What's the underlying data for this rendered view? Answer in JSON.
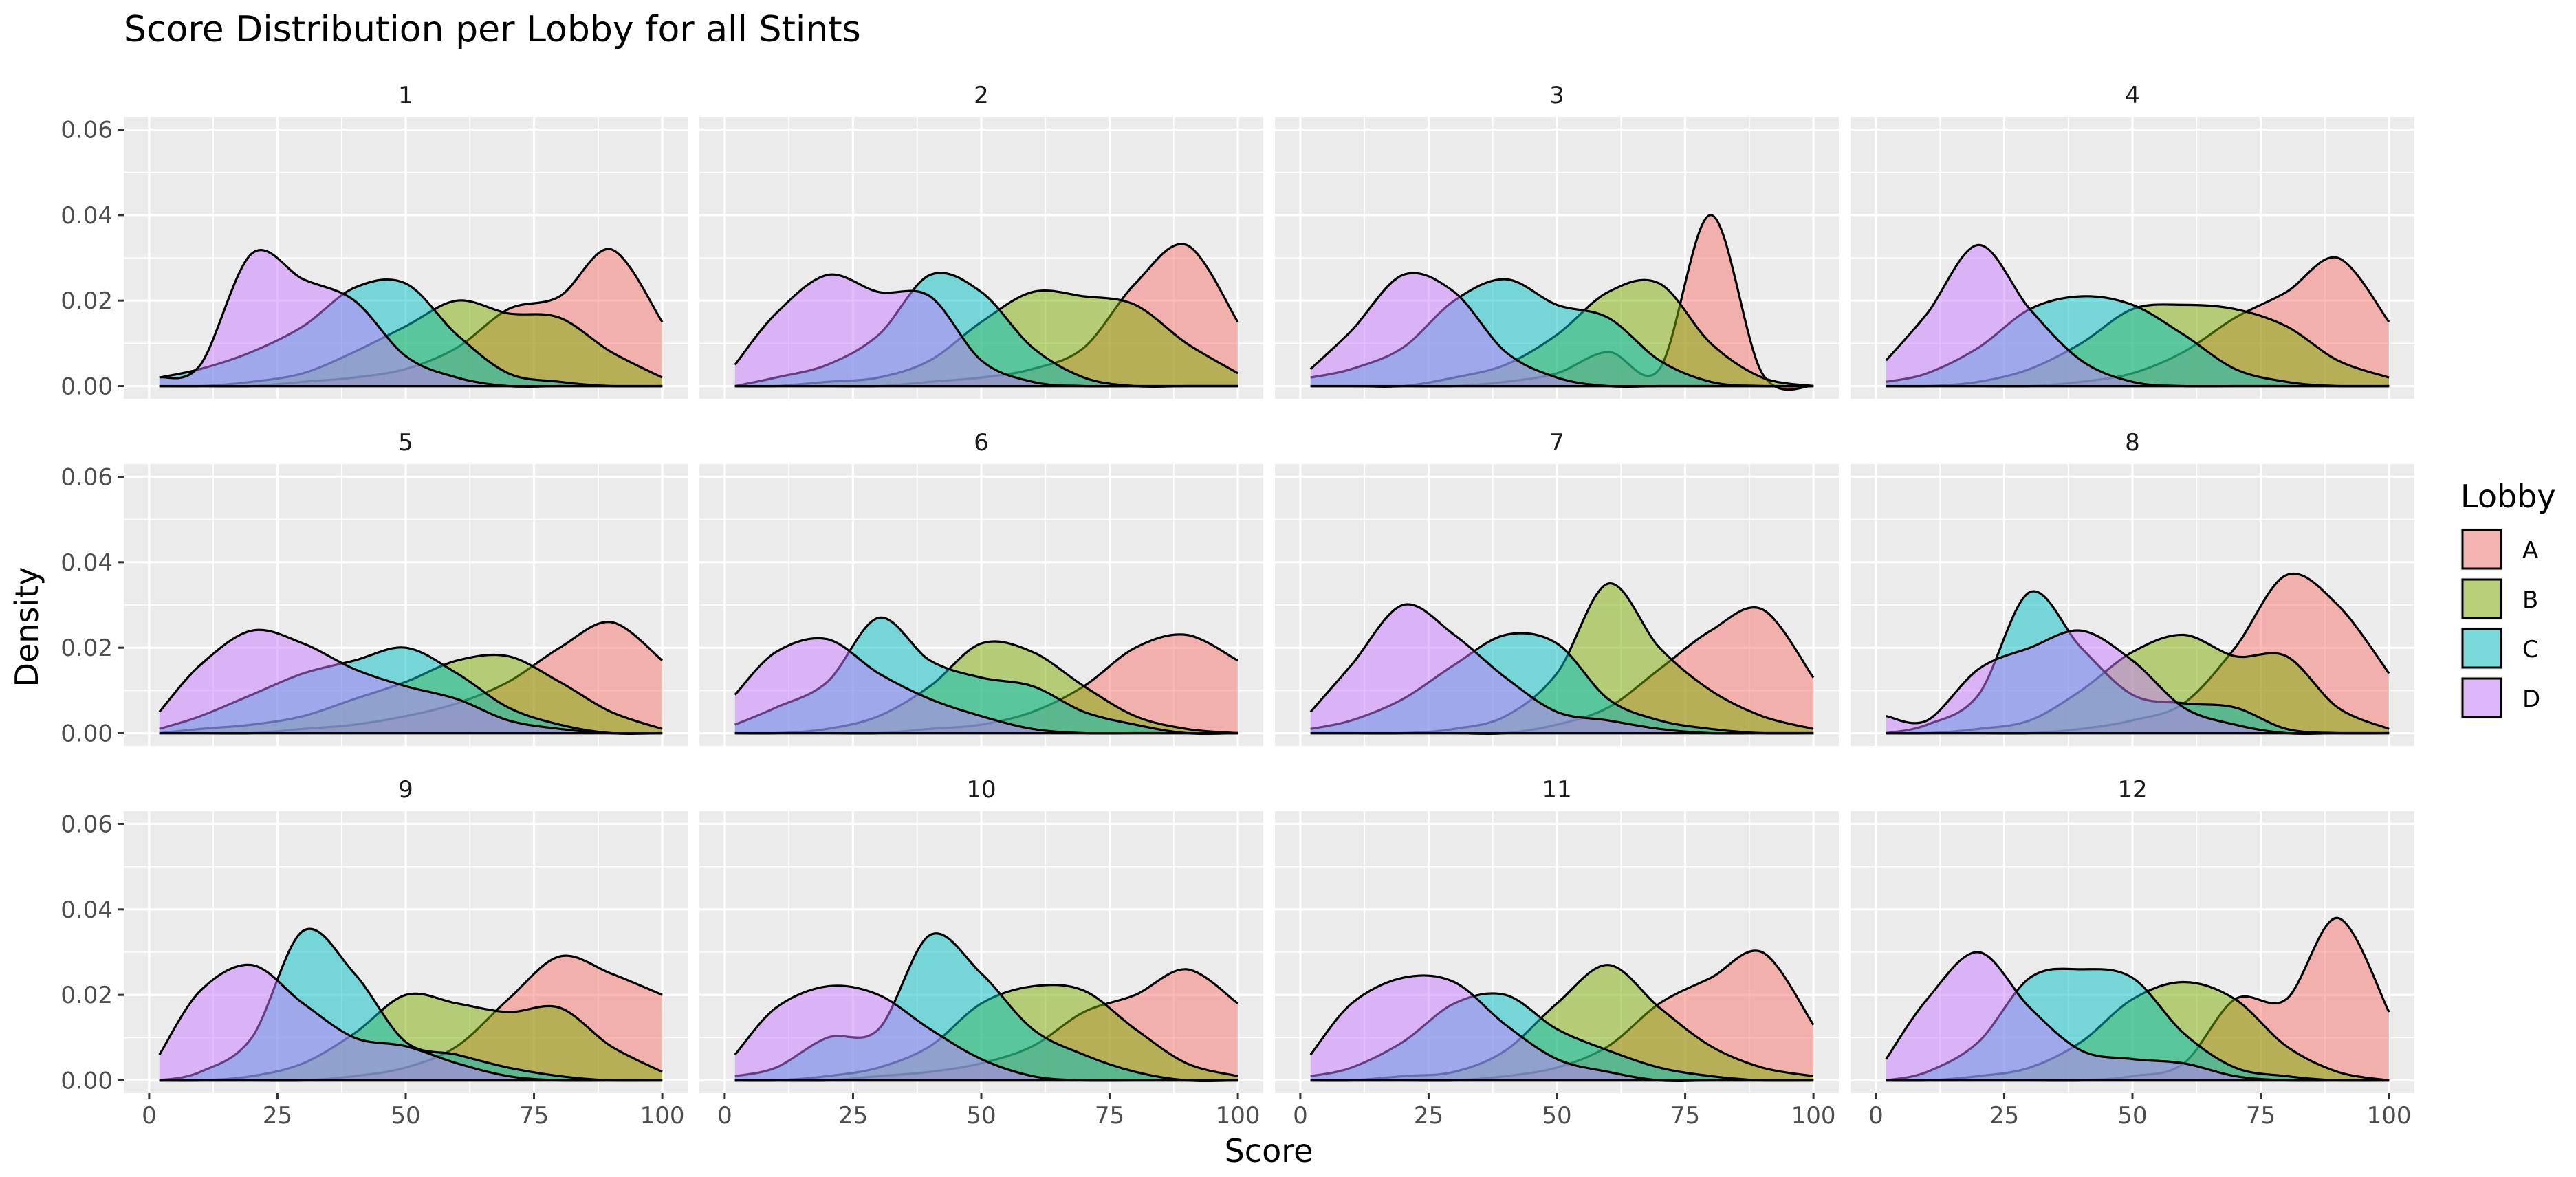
{
  "chart_data": {
    "type": "area",
    "subtype": "density (faceted, 3x4 grid)",
    "title": "Score Distribution per Lobby for all Stints",
    "xlabel": "Score",
    "ylabel": "Density",
    "xlim": [
      0,
      100
    ],
    "ylim": [
      0,
      0.06
    ],
    "x_ticks": [
      0,
      25,
      50,
      75,
      100
    ],
    "x_tick_labels": [
      "0",
      "25",
      "50",
      "75",
      "100"
    ],
    "y_ticks": [
      0,
      0.02,
      0.04,
      0.06
    ],
    "y_tick_labels": [
      "0.00",
      "0.02",
      "0.04",
      "0.06"
    ],
    "grid": true,
    "legend": {
      "title": "Lobby",
      "position": "right",
      "entries": [
        {
          "name": "A",
          "color": "#F8766D"
        },
        {
          "name": "B",
          "color": "#7CAE00"
        },
        {
          "name": "C",
          "color": "#00BFC4"
        },
        {
          "name": "D",
          "color": "#C77CFF"
        }
      ]
    },
    "x_eval": [
      2,
      10,
      20,
      30,
      40,
      50,
      60,
      70,
      80,
      90,
      100
    ],
    "facets": [
      {
        "label": "1",
        "series": [
          {
            "name": "A",
            "values": [
              0.0,
              0.0,
              0.0,
              0.001,
              0.002,
              0.004,
              0.009,
              0.018,
              0.021,
              0.032,
              0.015
            ]
          },
          {
            "name": "B",
            "values": [
              0.0,
              0.0,
              0.001,
              0.003,
              0.008,
              0.014,
              0.02,
              0.017,
              0.016,
              0.008,
              0.002
            ]
          },
          {
            "name": "C",
            "values": [
              0.002,
              0.004,
              0.008,
              0.014,
              0.023,
              0.024,
              0.012,
              0.003,
              0.001,
              0.0,
              0.0
            ]
          },
          {
            "name": "D",
            "values": [
              0.002,
              0.005,
              0.031,
              0.025,
              0.02,
              0.007,
              0.002,
              0.0,
              0.0,
              0.0,
              0.0
            ]
          }
        ]
      },
      {
        "label": "2",
        "series": [
          {
            "name": "A",
            "values": [
              0.0,
              0.0,
              0.0,
              0.0,
              0.001,
              0.002,
              0.004,
              0.009,
              0.024,
              0.033,
              0.015
            ]
          },
          {
            "name": "B",
            "values": [
              0.0,
              0.0,
              0.001,
              0.002,
              0.006,
              0.015,
              0.022,
              0.021,
              0.019,
              0.01,
              0.003
            ]
          },
          {
            "name": "C",
            "values": [
              0.0,
              0.002,
              0.005,
              0.012,
              0.026,
              0.022,
              0.009,
              0.002,
              0.0,
              0.0,
              0.0
            ]
          },
          {
            "name": "D",
            "values": [
              0.005,
              0.017,
              0.026,
              0.022,
              0.021,
              0.006,
              0.001,
              0.0,
              0.0,
              0.0,
              0.0
            ]
          }
        ]
      },
      {
        "label": "3",
        "series": [
          {
            "name": "A",
            "values": [
              0.0,
              0.0,
              0.0,
              0.0,
              0.001,
              0.003,
              0.008,
              0.004,
              0.04,
              0.003,
              0.0
            ]
          },
          {
            "name": "B",
            "values": [
              0.0,
              0.0,
              0.0,
              0.002,
              0.005,
              0.012,
              0.022,
              0.024,
              0.01,
              0.002,
              0.0
            ]
          },
          {
            "name": "C",
            "values": [
              0.002,
              0.004,
              0.009,
              0.02,
              0.025,
              0.019,
              0.016,
              0.006,
              0.001,
              0.0,
              0.0
            ]
          },
          {
            "name": "D",
            "values": [
              0.004,
              0.013,
              0.026,
              0.022,
              0.008,
              0.002,
              0.0,
              0.0,
              0.0,
              0.0,
              0.0
            ]
          }
        ]
      },
      {
        "label": "4",
        "series": [
          {
            "name": "A",
            "values": [
              0.0,
              0.0,
              0.0,
              0.0,
              0.001,
              0.003,
              0.008,
              0.016,
              0.022,
              0.03,
              0.015
            ]
          },
          {
            "name": "B",
            "values": [
              0.0,
              0.0,
              0.001,
              0.004,
              0.01,
              0.018,
              0.019,
              0.018,
              0.014,
              0.006,
              0.002
            ]
          },
          {
            "name": "C",
            "values": [
              0.001,
              0.003,
              0.009,
              0.018,
              0.021,
              0.019,
              0.012,
              0.004,
              0.001,
              0.0,
              0.0
            ]
          },
          {
            "name": "D",
            "values": [
              0.006,
              0.017,
              0.033,
              0.018,
              0.006,
              0.001,
              0.0,
              0.0,
              0.0,
              0.0,
              0.0
            ]
          }
        ]
      },
      {
        "label": "5",
        "series": [
          {
            "name": "A",
            "values": [
              0.0,
              0.0,
              0.0,
              0.001,
              0.002,
              0.004,
              0.007,
              0.012,
              0.02,
              0.026,
              0.017
            ]
          },
          {
            "name": "B",
            "values": [
              0.0,
              0.001,
              0.002,
              0.004,
              0.008,
              0.012,
              0.017,
              0.018,
              0.012,
              0.005,
              0.001
            ]
          },
          {
            "name": "C",
            "values": [
              0.001,
              0.004,
              0.009,
              0.014,
              0.017,
              0.02,
              0.014,
              0.006,
              0.002,
              0.0,
              0.0
            ]
          },
          {
            "name": "D",
            "values": [
              0.005,
              0.016,
              0.024,
              0.021,
              0.015,
              0.011,
              0.008,
              0.003,
              0.001,
              0.0,
              0.0
            ]
          }
        ]
      },
      {
        "label": "6",
        "series": [
          {
            "name": "A",
            "values": [
              0.0,
              0.0,
              0.0,
              0.0,
              0.001,
              0.002,
              0.005,
              0.011,
              0.02,
              0.023,
              0.017
            ]
          },
          {
            "name": "B",
            "values": [
              0.0,
              0.0,
              0.001,
              0.004,
              0.011,
              0.021,
              0.019,
              0.011,
              0.004,
              0.001,
              0.0
            ]
          },
          {
            "name": "C",
            "values": [
              0.002,
              0.006,
              0.012,
              0.027,
              0.017,
              0.013,
              0.011,
              0.005,
              0.002,
              0.0,
              0.0
            ]
          },
          {
            "name": "D",
            "values": [
              0.009,
              0.019,
              0.022,
              0.014,
              0.008,
              0.004,
              0.001,
              0.0,
              0.0,
              0.0,
              0.0
            ]
          }
        ]
      },
      {
        "label": "7",
        "series": [
          {
            "name": "A",
            "values": [
              0.0,
              0.0,
              0.0,
              0.0,
              0.0,
              0.002,
              0.006,
              0.015,
              0.024,
              0.029,
              0.013
            ]
          },
          {
            "name": "B",
            "values": [
              0.0,
              0.0,
              0.0,
              0.001,
              0.004,
              0.014,
              0.035,
              0.02,
              0.01,
              0.004,
              0.001
            ]
          },
          {
            "name": "C",
            "values": [
              0.001,
              0.003,
              0.008,
              0.016,
              0.023,
              0.021,
              0.008,
              0.003,
              0.001,
              0.0,
              0.0
            ]
          },
          {
            "name": "D",
            "values": [
              0.005,
              0.016,
              0.03,
              0.023,
              0.013,
              0.005,
              0.003,
              0.001,
              0.0,
              0.0,
              0.0
            ]
          }
        ]
      },
      {
        "label": "8",
        "series": [
          {
            "name": "A",
            "values": [
              0.0,
              0.0,
              0.0,
              0.0,
              0.001,
              0.003,
              0.007,
              0.02,
              0.037,
              0.03,
              0.014
            ]
          },
          {
            "name": "B",
            "values": [
              0.0,
              0.0,
              0.001,
              0.003,
              0.01,
              0.019,
              0.023,
              0.018,
              0.018,
              0.006,
              0.001
            ]
          },
          {
            "name": "C",
            "values": [
              0.0,
              0.002,
              0.009,
              0.033,
              0.02,
              0.009,
              0.007,
              0.006,
              0.001,
              0.0,
              0.0
            ]
          },
          {
            "name": "D",
            "values": [
              0.004,
              0.003,
              0.015,
              0.02,
              0.024,
              0.017,
              0.006,
              0.002,
              0.0,
              0.0,
              0.0
            ]
          }
        ]
      },
      {
        "label": "9",
        "series": [
          {
            "name": "A",
            "values": [
              0.0,
              0.0,
              0.0,
              0.0,
              0.001,
              0.003,
              0.008,
              0.019,
              0.029,
              0.025,
              0.02
            ]
          },
          {
            "name": "B",
            "values": [
              0.0,
              0.0,
              0.001,
              0.004,
              0.011,
              0.02,
              0.018,
              0.016,
              0.017,
              0.008,
              0.002
            ]
          },
          {
            "name": "C",
            "values": [
              0.0,
              0.002,
              0.01,
              0.035,
              0.025,
              0.009,
              0.006,
              0.003,
              0.001,
              0.0,
              0.0
            ]
          },
          {
            "name": "D",
            "values": [
              0.006,
              0.021,
              0.027,
              0.018,
              0.01,
              0.008,
              0.004,
              0.001,
              0.0,
              0.0,
              0.0
            ]
          }
        ]
      },
      {
        "label": "10",
        "series": [
          {
            "name": "A",
            "values": [
              0.0,
              0.0,
              0.0,
              0.001,
              0.002,
              0.004,
              0.008,
              0.016,
              0.02,
              0.026,
              0.018
            ]
          },
          {
            "name": "B",
            "values": [
              0.0,
              0.0,
              0.001,
              0.003,
              0.008,
              0.018,
              0.022,
              0.021,
              0.012,
              0.004,
              0.001
            ]
          },
          {
            "name": "C",
            "values": [
              0.001,
              0.003,
              0.01,
              0.012,
              0.034,
              0.025,
              0.012,
              0.006,
              0.002,
              0.0,
              0.0
            ]
          },
          {
            "name": "D",
            "values": [
              0.006,
              0.017,
              0.022,
              0.02,
              0.012,
              0.005,
              0.001,
              0.0,
              0.0,
              0.0,
              0.0
            ]
          }
        ]
      },
      {
        "label": "11",
        "series": [
          {
            "name": "A",
            "values": [
              0.0,
              0.0,
              0.0,
              0.0,
              0.001,
              0.003,
              0.008,
              0.018,
              0.024,
              0.03,
              0.013
            ]
          },
          {
            "name": "B",
            "values": [
              0.0,
              0.0,
              0.001,
              0.002,
              0.007,
              0.018,
              0.027,
              0.017,
              0.008,
              0.003,
              0.001
            ]
          },
          {
            "name": "C",
            "values": [
              0.001,
              0.003,
              0.009,
              0.018,
              0.02,
              0.012,
              0.007,
              0.003,
              0.001,
              0.0,
              0.0
            ]
          },
          {
            "name": "D",
            "values": [
              0.006,
              0.018,
              0.024,
              0.023,
              0.013,
              0.005,
              0.002,
              0.0,
              0.0,
              0.0,
              0.0
            ]
          }
        ]
      },
      {
        "label": "12",
        "series": [
          {
            "name": "A",
            "values": [
              0.0,
              0.0,
              0.0,
              0.0,
              0.0,
              0.001,
              0.004,
              0.019,
              0.019,
              0.038,
              0.016
            ]
          },
          {
            "name": "B",
            "values": [
              0.0,
              0.0,
              0.001,
              0.003,
              0.009,
              0.019,
              0.023,
              0.019,
              0.008,
              0.002,
              0.0
            ]
          },
          {
            "name": "C",
            "values": [
              0.0,
              0.002,
              0.009,
              0.024,
              0.026,
              0.024,
              0.011,
              0.003,
              0.001,
              0.0,
              0.0
            ]
          },
          {
            "name": "D",
            "values": [
              0.005,
              0.019,
              0.03,
              0.017,
              0.007,
              0.005,
              0.004,
              0.001,
              0.0,
              0.0,
              0.0
            ]
          }
        ]
      }
    ]
  }
}
